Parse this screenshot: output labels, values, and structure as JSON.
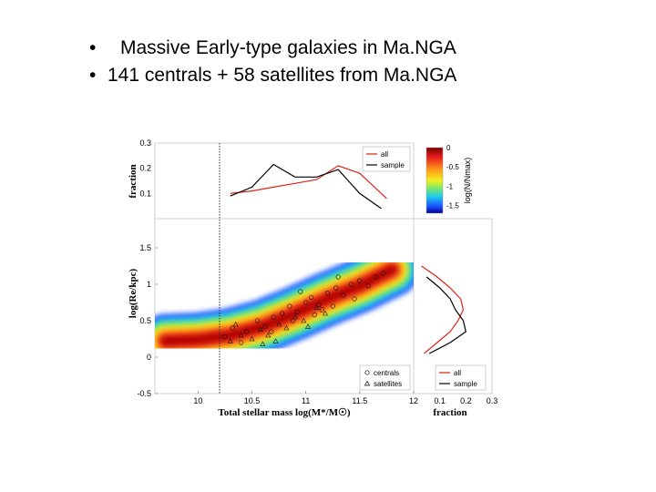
{
  "slide": {
    "bullets": [
      {
        "marker": "•",
        "text": "Massive Early-type galaxies in Ma.NGA"
      },
      {
        "marker": "•",
        "text": "141 centrals + 58 satellites from Ma.NGA"
      }
    ]
  },
  "chart_data": [
    {
      "type": "line",
      "panel": "top",
      "ylabel": "fraction",
      "ylim": [
        0,
        0.3
      ],
      "yticks": [
        "0.1",
        "0.2",
        "0.3"
      ],
      "xlim": [
        9.6,
        12
      ],
      "series": [
        {
          "name": "all",
          "color": "#e0221c",
          "x": [
            10.3,
            10.5,
            10.7,
            10.9,
            11.1,
            11.3,
            11.5,
            11.6,
            11.75
          ],
          "y": [
            0.1,
            0.11,
            0.125,
            0.14,
            0.155,
            0.21,
            0.18,
            0.14,
            0.08
          ]
        },
        {
          "name": "sample",
          "color": "#000000",
          "x": [
            10.3,
            10.5,
            10.7,
            10.9,
            11.1,
            11.3,
            11.5,
            11.7
          ],
          "y": [
            0.09,
            0.125,
            0.215,
            0.165,
            0.165,
            0.195,
            0.1,
            0.04
          ]
        }
      ],
      "legend": "top-right"
    },
    {
      "type": "heatmap",
      "panel": "main",
      "xlabel": "Total stellar mass log(M*/M☉)",
      "ylabel": "log(Re/kpc)",
      "xlim": [
        9.6,
        12
      ],
      "ylim": [
        -0.5,
        1.9
      ],
      "xticks": [
        "10",
        "10.5",
        "11",
        "11.5",
        "12"
      ],
      "yticks": [
        "-0.5",
        "0",
        "0.5",
        "1",
        "1.5"
      ],
      "colorbar": {
        "label": "log(N/Nmax)",
        "range": [
          -1.7,
          0
        ],
        "ticks": [
          "0",
          "-0.5",
          "-1",
          "-1.5"
        ]
      },
      "vline_x": 10.2,
      "ridge": {
        "x": [
          9.7,
          10.0,
          10.3,
          10.6,
          10.9,
          11.2,
          11.5,
          11.8
        ],
        "y": [
          0.22,
          0.24,
          0.3,
          0.42,
          0.6,
          0.8,
          0.98,
          1.2
        ]
      },
      "series": [
        {
          "name": "centrals",
          "marker": "circle",
          "points": [
            [
              10.25,
              0.28
            ],
            [
              10.32,
              0.4
            ],
            [
              10.45,
              0.35
            ],
            [
              10.55,
              0.5
            ],
            [
              10.62,
              0.42
            ],
            [
              10.7,
              0.55
            ],
            [
              10.78,
              0.6
            ],
            [
              10.85,
              0.7
            ],
            [
              10.92,
              0.62
            ],
            [
              11.0,
              0.75
            ],
            [
              11.05,
              0.82
            ],
            [
              11.12,
              0.72
            ],
            [
              11.2,
              0.88
            ],
            [
              11.28,
              0.95
            ],
            [
              11.35,
              0.85
            ],
            [
              11.42,
              1.0
            ],
            [
              11.5,
              1.05
            ],
            [
              11.58,
              0.98
            ],
            [
              11.65,
              1.1
            ],
            [
              11.72,
              1.15
            ],
            [
              10.95,
              0.9
            ],
            [
              11.15,
              0.65
            ],
            [
              11.3,
              1.1
            ],
            [
              10.68,
              0.35
            ],
            [
              10.4,
              0.2
            ],
            [
              11.45,
              0.8
            ],
            [
              10.88,
              0.5
            ],
            [
              11.08,
              0.58
            ],
            [
              11.25,
              0.7
            ]
          ]
        },
        {
          "name": "satellites",
          "marker": "triangle",
          "points": [
            [
              10.3,
              0.22
            ],
            [
              10.4,
              0.3
            ],
            [
              10.5,
              0.25
            ],
            [
              10.58,
              0.38
            ],
            [
              10.65,
              0.3
            ],
            [
              10.75,
              0.45
            ],
            [
              10.82,
              0.4
            ],
            [
              10.9,
              0.55
            ],
            [
              10.98,
              0.5
            ],
            [
              11.1,
              0.68
            ],
            [
              11.18,
              0.6
            ],
            [
              10.6,
              0.18
            ],
            [
              10.72,
              0.22
            ],
            [
              10.35,
              0.45
            ],
            [
              11.02,
              0.42
            ]
          ]
        }
      ],
      "legend": "bottom-right"
    },
    {
      "type": "line",
      "panel": "right",
      "xlabel": "fraction",
      "xlim": [
        0,
        0.3
      ],
      "xticks": [
        "0.1",
        "0.2",
        "0.3"
      ],
      "ylim": [
        -0.5,
        1.9
      ],
      "series": [
        {
          "name": "all",
          "color": "#e0221c",
          "y": [
            1.25,
            1.1,
            0.95,
            0.8,
            0.65,
            0.5,
            0.35,
            0.2,
            0.05
          ],
          "x": [
            0.03,
            0.09,
            0.14,
            0.18,
            0.19,
            0.17,
            0.14,
            0.09,
            0.04
          ]
        },
        {
          "name": "sample",
          "color": "#000000",
          "y": [
            1.1,
            0.95,
            0.8,
            0.65,
            0.5,
            0.35,
            0.2,
            0.05
          ],
          "x": [
            0.05,
            0.1,
            0.14,
            0.16,
            0.19,
            0.2,
            0.14,
            0.06
          ]
        }
      ],
      "legend": "bottom-right"
    }
  ]
}
